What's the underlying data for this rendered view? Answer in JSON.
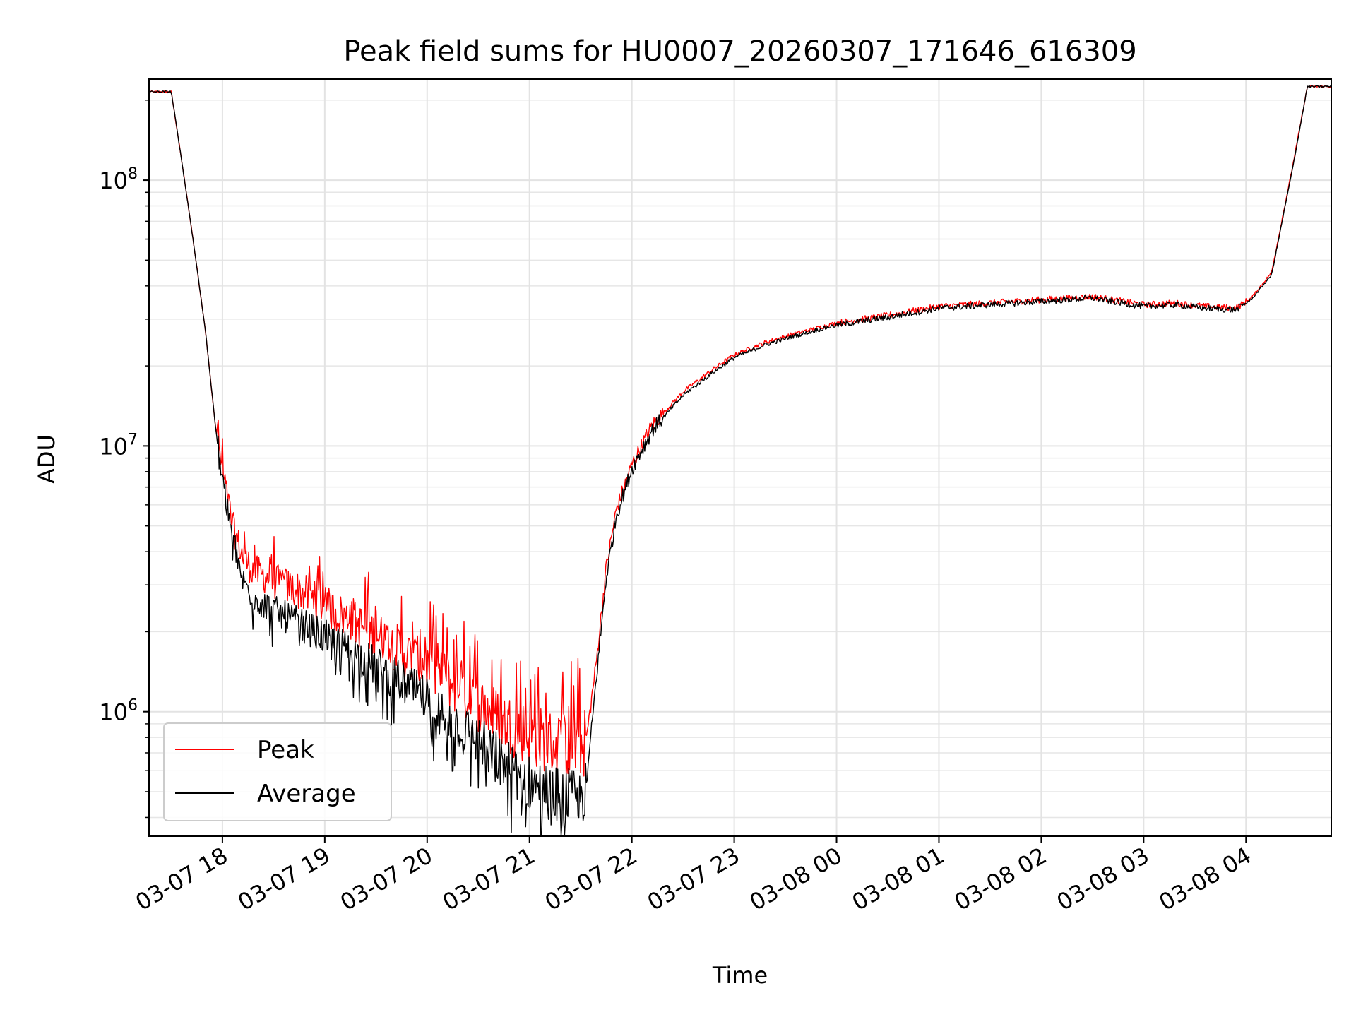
{
  "chart_data": {
    "type": "line",
    "title": "Peak field sums for HU0007_20260307_171646_616309",
    "xlabel": "Time",
    "ylabel": "ADU",
    "yscale": "log",
    "ylim": [
      340000,
      240000000
    ],
    "xlim_hours": [
      17.283,
      28.833
    ],
    "grid": true,
    "legend_position": "lower-left",
    "x_ticks": [
      {
        "hour": 18,
        "label": "03-07 18"
      },
      {
        "hour": 19,
        "label": "03-07 19"
      },
      {
        "hour": 20,
        "label": "03-07 20"
      },
      {
        "hour": 21,
        "label": "03-07 21"
      },
      {
        "hour": 22,
        "label": "03-07 22"
      },
      {
        "hour": 23,
        "label": "03-07 23"
      },
      {
        "hour": 24,
        "label": "03-08 00"
      },
      {
        "hour": 25,
        "label": "03-08 01"
      },
      {
        "hour": 26,
        "label": "03-08 02"
      },
      {
        "hour": 27,
        "label": "03-08 03"
      },
      {
        "hour": 28,
        "label": "03-08 04"
      }
    ],
    "y_ticks": [
      {
        "value": 1000000,
        "base": "10",
        "exp": "6"
      },
      {
        "value": 10000000,
        "base": "10",
        "exp": "7"
      },
      {
        "value": 100000000,
        "base": "10",
        "exp": "8"
      }
    ],
    "series": [
      {
        "name": "Peak",
        "color": "#ff0000",
        "x_hours": [
          17.283,
          17.5,
          17.6,
          17.7,
          17.83,
          17.93,
          18.0,
          18.1,
          18.2,
          18.3,
          18.5,
          18.75,
          19.0,
          19.3,
          19.6,
          19.9,
          20.2,
          20.5,
          20.75,
          21.0,
          21.25,
          21.45,
          21.55,
          21.65,
          21.75,
          21.85,
          22.0,
          22.2,
          22.5,
          22.8,
          23.0,
          23.3,
          23.6,
          24.0,
          24.5,
          25.0,
          25.5,
          26.0,
          26.5,
          27.0,
          27.3,
          27.6,
          27.9,
          28.05,
          28.25,
          28.45,
          28.6,
          28.833
        ],
        "values": [
          215000000,
          215000000,
          120000000,
          65000000,
          28000000,
          12000000,
          8000000,
          5000000,
          3800000,
          3400000,
          3100000,
          2850000,
          2500000,
          2150000,
          1850000,
          1550000,
          1300000,
          1080000,
          920000,
          820000,
          760000,
          740000,
          760000,
          1500000,
          3500000,
          5800000,
          8500000,
          12000000,
          16000000,
          19500000,
          22000000,
          24500000,
          26500000,
          29000000,
          31000000,
          33500000,
          34500000,
          35500000,
          36500000,
          34000000,
          34500000,
          33500000,
          33000000,
          36000000,
          45000000,
          110000000,
          225000000,
          225000000
        ]
      },
      {
        "name": "Average",
        "color": "#000000",
        "x_hours": [
          17.283,
          17.5,
          17.6,
          17.7,
          17.83,
          17.93,
          18.0,
          18.1,
          18.2,
          18.3,
          18.5,
          18.75,
          19.0,
          19.3,
          19.6,
          19.9,
          20.2,
          20.5,
          20.75,
          21.0,
          21.25,
          21.45,
          21.55,
          21.65,
          21.75,
          21.85,
          22.0,
          22.2,
          22.5,
          22.8,
          23.0,
          23.3,
          23.6,
          24.0,
          24.5,
          25.0,
          25.5,
          26.0,
          26.5,
          27.0,
          27.3,
          27.6,
          27.9,
          28.05,
          28.25,
          28.45,
          28.6,
          28.833
        ],
        "values": [
          215000000,
          215000000,
          120000000,
          65000000,
          28000000,
          12000000,
          7500000,
          4500000,
          3100000,
          2700000,
          2400000,
          2150000,
          1900000,
          1650000,
          1400000,
          1180000,
          960000,
          780000,
          640000,
          540000,
          490000,
          470000,
          500000,
          1300000,
          3200000,
          5500000,
          8200000,
          11500000,
          15500000,
          19000000,
          21500000,
          24000000,
          26000000,
          28500000,
          30500000,
          33000000,
          34000000,
          35000000,
          36000000,
          33500000,
          34000000,
          33000000,
          32500000,
          35500000,
          44000000,
          108000000,
          225000000,
          225000000
        ]
      }
    ]
  }
}
